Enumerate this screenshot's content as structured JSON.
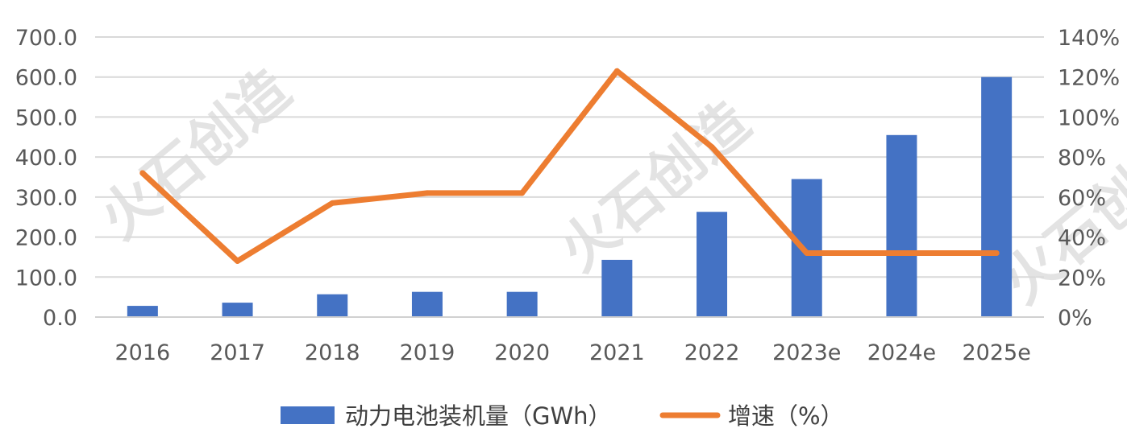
{
  "chart_data": {
    "type": "bar",
    "categories": [
      "2016",
      "2017",
      "2018",
      "2019",
      "2020",
      "2021",
      "2022",
      "2023e",
      "2024e",
      "2025e"
    ],
    "series": [
      {
        "name": "动力电池装机量（GWh）",
        "type": "bar",
        "axis": "left",
        "color": "#4472C4",
        "values": [
          28,
          36,
          57,
          63,
          63,
          143,
          263,
          345,
          455,
          600
        ]
      },
      {
        "name": "增速（%）",
        "type": "line",
        "axis": "right",
        "color": "#ED7D31",
        "values": [
          72,
          28,
          57,
          62,
          62,
          123,
          85,
          32,
          32,
          32
        ]
      }
    ],
    "y_left": {
      "range": [
        0,
        700
      ],
      "ticks": [
        "0.0",
        "100.0",
        "200.0",
        "300.0",
        "400.0",
        "500.0",
        "600.0",
        "700.0"
      ]
    },
    "y_right": {
      "range": [
        0,
        140
      ],
      "ticks": [
        "0%",
        "20%",
        "40%",
        "60%",
        "80%",
        "100%",
        "120%",
        "140%"
      ]
    },
    "grid": true,
    "legend": "bottom-center"
  },
  "watermark": "火石创造"
}
